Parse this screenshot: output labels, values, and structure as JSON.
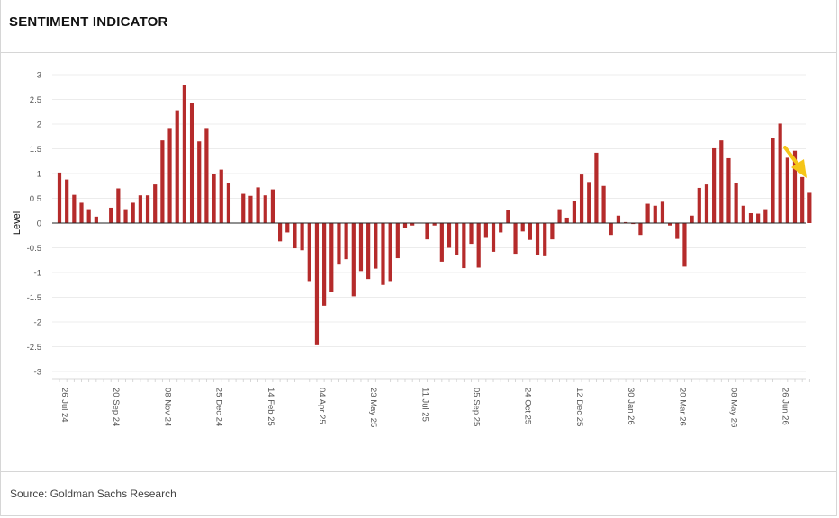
{
  "header": {
    "title": "SENTIMENT INDICATOR"
  },
  "footer": {
    "source": "Source: Goldman Sachs Research"
  },
  "chart_data": {
    "type": "bar",
    "ylabel": "Level",
    "ylim": [
      -3,
      3
    ],
    "yticks": [
      3,
      2.5,
      2,
      1.5,
      1,
      0.5,
      0,
      -0.5,
      -1,
      -1.5,
      -2,
      -2.5,
      -3
    ],
    "grid": true,
    "bar_color": "#b52b2b",
    "annotation_color": "#f5c518",
    "annotation": "arrow-down-right",
    "x_tick_labels": [
      "26 Jul 24",
      "20 Sep 24",
      "08 Nov 24",
      "25 Dec 24",
      "14 Feb 25",
      "04 Apr 25",
      "23 May 25",
      "11 Jul 25",
      "05 Sep 25",
      "24 Oct 25",
      "12 Dec 25",
      "30 Jan 26",
      "20 Mar 26",
      "08 May 26",
      "26 Jun 26"
    ],
    "x_tick_positions": [
      0,
      7,
      14,
      21,
      28,
      35,
      42,
      49,
      56,
      63,
      70,
      77,
      84,
      91,
      98
    ],
    "values": [
      1.02,
      0.88,
      0.57,
      0.41,
      0.28,
      0.13,
      0,
      0.31,
      0.7,
      0.28,
      0.41,
      0.56,
      0.56,
      0.78,
      1.67,
      1.92,
      2.28,
      2.79,
      2.43,
      1.65,
      1.92,
      0.99,
      1.08,
      0.81,
      0,
      0.59,
      0.55,
      0.72,
      0.56,
      0.68,
      -0.37,
      -0.19,
      -0.51,
      -0.55,
      -1.19,
      -2.47,
      -1.67,
      -1.4,
      -0.84,
      -0.73,
      -1.48,
      -0.97,
      -1.13,
      -0.92,
      -1.25,
      -1.19,
      -0.71,
      -0.1,
      -0.05,
      0,
      -0.33,
      -0.05,
      -0.78,
      -0.5,
      -0.65,
      -0.91,
      -0.42,
      -0.9,
      -0.3,
      -0.58,
      -0.19,
      0.27,
      -0.62,
      -0.17,
      -0.34,
      -0.65,
      -0.67,
      -0.33,
      0.28,
      0.11,
      0.44,
      0.98,
      0.83,
      1.42,
      0.75,
      -0.24,
      0.15,
      0.02,
      -0.02,
      -0.24,
      0.39,
      0.35,
      0.43,
      -0.05,
      -0.32,
      -0.88,
      0.15,
      0.71,
      0.78,
      1.51,
      1.67,
      1.31,
      0.8,
      0.35,
      0.2,
      0.19,
      0.28,
      1.71,
      2.01,
      1.32,
      1.46,
      0.93,
      0.61
    ]
  }
}
